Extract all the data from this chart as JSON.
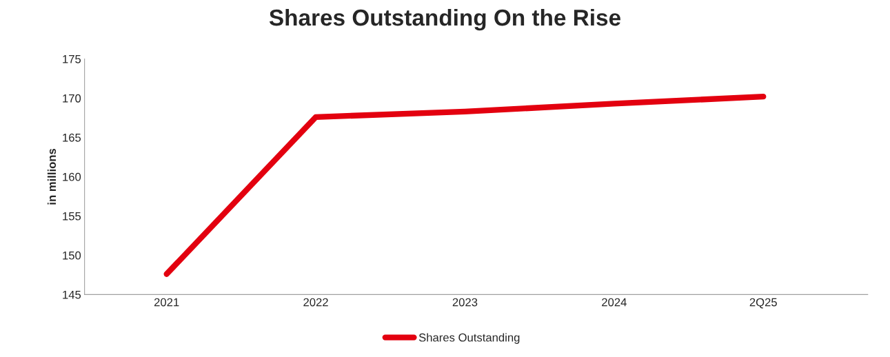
{
  "chart_data": {
    "type": "line",
    "title": "Shares Outstanding On the Rise",
    "ylabel": "in millions",
    "categories": [
      "2021",
      "2022",
      "2023",
      "2024",
      "2Q25"
    ],
    "series": [
      {
        "name": "Shares Outstanding",
        "color": "#e3000f",
        "values": [
          147.6,
          167.6,
          168.3,
          169.3,
          170.2
        ]
      }
    ],
    "ylim": [
      145,
      175
    ],
    "yticks": [
      145,
      150,
      155,
      160,
      165,
      170,
      175
    ],
    "grid": false,
    "legend": "bottom",
    "marker": "none",
    "line_style": "solid"
  }
}
